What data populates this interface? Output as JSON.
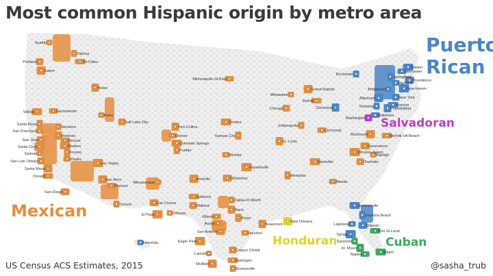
{
  "title": "Most common Hispanic origin by metro area",
  "legend": {
    "puerto_rican_line1": "Puerto",
    "puerto_rican_line2": "Rican",
    "salvadoran": "Salvadoran",
    "mexican": "Mexican",
    "honduran": "Honduran",
    "cuban": "Cuban"
  },
  "colors": {
    "mexican": "#e58e3c",
    "puerto_rican": "#4a86c8",
    "salvadoran": "#c03cc8",
    "honduran": "#e0d22a",
    "cuban": "#3cab5c",
    "base_county": "#e9e9e9"
  },
  "source": "US Census ACS Estimates, 2015",
  "credit": "@sasha_trub",
  "cities": [
    {
      "name": "Seattle",
      "origin": "mexican"
    },
    {
      "name": "Portland",
      "origin": "mexican"
    },
    {
      "name": "Salem",
      "origin": "mexican"
    },
    {
      "name": "Tri-Cities",
      "origin": "mexican"
    },
    {
      "name": "Yakima",
      "origin": "mexican"
    },
    {
      "name": "Boise",
      "origin": "mexican"
    },
    {
      "name": "Sacramento",
      "origin": "mexican"
    },
    {
      "name": "Vallejo",
      "origin": "mexican"
    },
    {
      "name": "Santa Rosa",
      "origin": "mexican"
    },
    {
      "name": "San Francisco",
      "origin": "mexican"
    },
    {
      "name": "San Jose",
      "origin": "mexican"
    },
    {
      "name": "Santa Cruz",
      "origin": "mexican"
    },
    {
      "name": "Salinas",
      "origin": "mexican"
    },
    {
      "name": "San Luis Obispo",
      "origin": "mexican"
    },
    {
      "name": "Santa Maria",
      "origin": "mexican"
    },
    {
      "name": "Oxnard",
      "origin": "mexican"
    },
    {
      "name": "Stockton",
      "origin": "mexican"
    },
    {
      "name": "Modesto",
      "origin": "mexican"
    },
    {
      "name": "Merced",
      "origin": "mexican"
    },
    {
      "name": "Madera",
      "origin": "mexican"
    },
    {
      "name": "Fresno",
      "origin": "mexican"
    },
    {
      "name": "Visalia",
      "origin": "mexican"
    },
    {
      "name": "San Diego",
      "origin": "mexican"
    },
    {
      "name": "Las Vegas",
      "origin": "mexican"
    },
    {
      "name": "Reno",
      "origin": "mexican"
    },
    {
      "name": "Salt Lake City",
      "origin": "mexican"
    },
    {
      "name": "San Bern.",
      "origin": "mexican"
    },
    {
      "name": "Phoenix",
      "origin": "mexican"
    },
    {
      "name": "Tucson",
      "origin": "mexican"
    },
    {
      "name": "Fort Collins",
      "origin": "mexican"
    },
    {
      "name": "Denver",
      "origin": "mexican"
    },
    {
      "name": "Colorado Springs",
      "origin": "mexican"
    },
    {
      "name": "Pueblo",
      "origin": "mexican"
    },
    {
      "name": "Albuquerque",
      "origin": "mexican"
    },
    {
      "name": "Las Cruces",
      "origin": "mexican"
    },
    {
      "name": "El Paso",
      "origin": "mexican"
    },
    {
      "name": "Odessa",
      "origin": "mexican"
    },
    {
      "name": "Midland",
      "origin": "mexican"
    },
    {
      "name": "Amarillo",
      "origin": "mexican"
    },
    {
      "name": "Lubbock",
      "origin": "mexican"
    },
    {
      "name": "Dallas-Ft Worth",
      "origin": "mexican"
    },
    {
      "name": "Waco",
      "origin": "mexican"
    },
    {
      "name": "Killeen",
      "origin": "mexican"
    },
    {
      "name": "Austin",
      "origin": "mexican"
    },
    {
      "name": "Bryan",
      "origin": "mexican"
    },
    {
      "name": "Houston",
      "origin": "mexican"
    },
    {
      "name": "San Antonio",
      "origin": "mexican"
    },
    {
      "name": "Eagle Pass",
      "origin": "mexican"
    },
    {
      "name": "Laredo",
      "origin": "mexican"
    },
    {
      "name": "Corpus Christi",
      "origin": "mexican"
    },
    {
      "name": "McAllen",
      "origin": "mexican"
    },
    {
      "name": "Harlingen",
      "origin": "mexican"
    },
    {
      "name": "Brownsville",
      "origin": "mexican"
    },
    {
      "name": "Beaumont",
      "origin": "mexican"
    },
    {
      "name": "Minneapolis-St.Paul",
      "origin": "mexican"
    },
    {
      "name": "Omaha",
      "origin": "mexican"
    },
    {
      "name": "Kansas City",
      "origin": "mexican"
    },
    {
      "name": "Wichita",
      "origin": "mexican"
    },
    {
      "name": "Oklahoma",
      "origin": "mexican"
    },
    {
      "name": "Fayetteville",
      "origin": "mexican"
    },
    {
      "name": "Milwaukee",
      "origin": "mexican"
    },
    {
      "name": "Chicago",
      "origin": "mexican"
    },
    {
      "name": "Grand Rapids",
      "origin": "mexican"
    },
    {
      "name": "Detroit",
      "origin": "mexican"
    },
    {
      "name": "Indianapolis",
      "origin": "mexican"
    },
    {
      "name": "St. Louis",
      "origin": "mexican"
    },
    {
      "name": "Cincinnati",
      "origin": "mexican"
    },
    {
      "name": "Nashville",
      "origin": "mexican"
    },
    {
      "name": "Memphis",
      "origin": "mexican"
    },
    {
      "name": "Atlanta",
      "origin": "mexican"
    },
    {
      "name": "Greensboro",
      "origin": "mexican"
    },
    {
      "name": "Winston-Salem",
      "origin": "mexican"
    },
    {
      "name": "Raleigh",
      "origin": "mexican"
    },
    {
      "name": "Charlotte",
      "origin": "mexican"
    },
    {
      "name": "Richmond",
      "origin": "mexican"
    },
    {
      "name": "Norfolk-VA Beach",
      "origin": "mexican"
    },
    {
      "name": "Rochester",
      "origin": "puerto_rican"
    },
    {
      "name": "Cleveland",
      "origin": "puerto_rican"
    },
    {
      "name": "Worcester",
      "origin": "puerto_rican"
    },
    {
      "name": "Boston",
      "origin": "puerto_rican"
    },
    {
      "name": "Springfield",
      "origin": "puerto_rican"
    },
    {
      "name": "Hartford",
      "origin": "puerto_rican"
    },
    {
      "name": "Providence",
      "origin": "puerto_rican"
    },
    {
      "name": "New Haven",
      "origin": "puerto_rican"
    },
    {
      "name": "Bridgeport",
      "origin": "puerto_rican"
    },
    {
      "name": "New York",
      "origin": "puerto_rican"
    },
    {
      "name": "Allentown",
      "origin": "puerto_rican"
    },
    {
      "name": "Trenton",
      "origin": "puerto_rican"
    },
    {
      "name": "Reading",
      "origin": "puerto_rican"
    },
    {
      "name": "Philadelphia",
      "origin": "puerto_rican"
    },
    {
      "name": "Baltimore",
      "origin": "puerto_rican"
    },
    {
      "name": "Jacksonville",
      "origin": "puerto_rican"
    },
    {
      "name": "Daytona Beach",
      "origin": "puerto_rican"
    },
    {
      "name": "Lakeland",
      "origin": "puerto_rican"
    },
    {
      "name": "Orlando",
      "origin": "puerto_rican"
    },
    {
      "name": "Tampa",
      "origin": "puerto_rican"
    },
    {
      "name": "Honolulu",
      "origin": "puerto_rican"
    },
    {
      "name": "Washington",
      "origin": "salvadoran"
    },
    {
      "name": "New Orleans",
      "origin": "honduran"
    },
    {
      "name": "Port St.Lucie",
      "origin": "cuban"
    },
    {
      "name": "Sarasota",
      "origin": "cuban"
    },
    {
      "name": "Ft. Myers",
      "origin": "cuban"
    },
    {
      "name": "Naples",
      "origin": "cuban"
    },
    {
      "name": "Miami",
      "origin": "cuban"
    }
  ]
}
